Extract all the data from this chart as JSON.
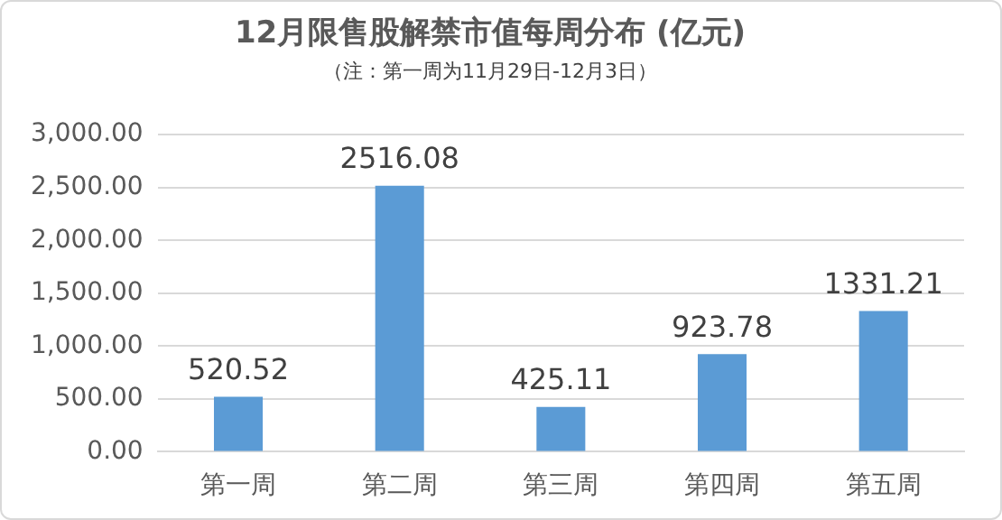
{
  "chart_data": {
    "type": "bar",
    "title": "12月限售股解禁市值每周分布 (亿元)",
    "subtitle": "（注：第一周为11月29日-12月3日）",
    "categories": [
      "第一周",
      "第二周",
      "第三周",
      "第四周",
      "第五周"
    ],
    "values": [
      520.52,
      2516.08,
      425.11,
      923.78,
      1331.21
    ],
    "color": "#5b9bd5",
    "ylim": [
      0,
      3000
    ],
    "yticks": [
      {
        "value": 0,
        "label": "0.00"
      },
      {
        "value": 500,
        "label": "500.00"
      },
      {
        "value": 1000,
        "label": "1,000.00"
      },
      {
        "value": 1500,
        "label": "1,500.00"
      },
      {
        "value": 2000,
        "label": "2,000.00"
      },
      {
        "value": 2500,
        "label": "2,500.00"
      },
      {
        "value": 3000,
        "label": "3,000.00"
      }
    ],
    "grid": "y",
    "data_labels": true
  }
}
